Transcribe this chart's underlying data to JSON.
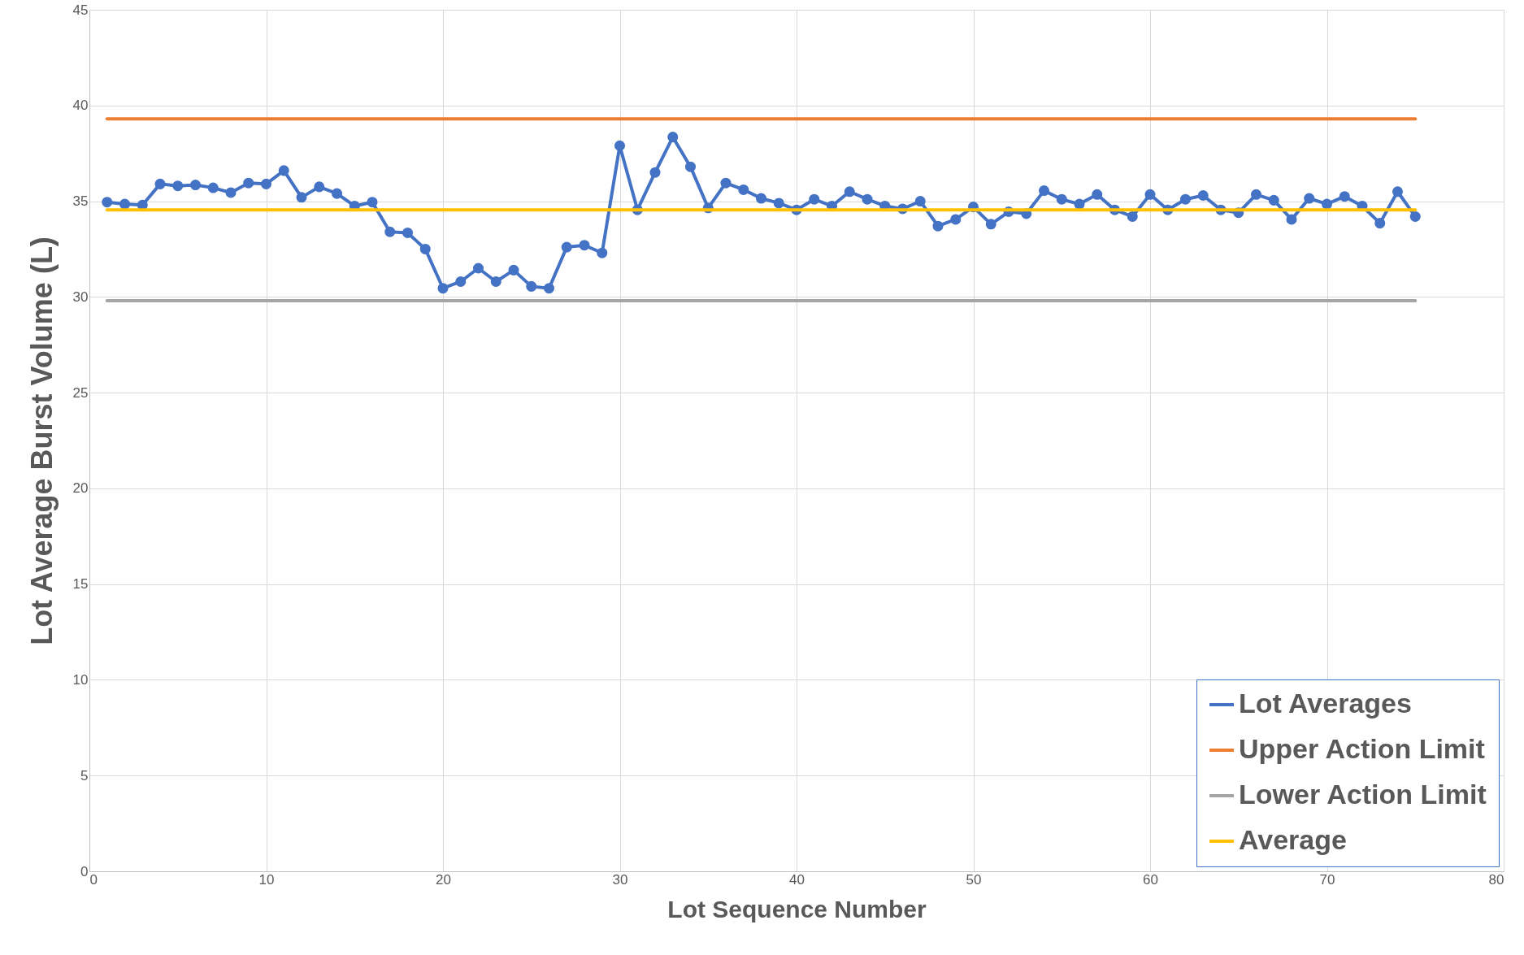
{
  "chart_data": {
    "type": "line",
    "xlabel": "Lot Sequence Number",
    "ylabel": "Lot Average Burst Volume (L)",
    "xlim": [
      0,
      80
    ],
    "xticks": [
      0,
      10,
      20,
      30,
      40,
      50,
      60,
      70,
      80
    ],
    "ylim": [
      0,
      45
    ],
    "yticks": [
      0,
      5,
      10,
      15,
      20,
      25,
      30,
      35,
      40,
      45
    ],
    "grid": true,
    "legend": "bottom right",
    "series": [
      {
        "name": "Lot Averages",
        "color": "#4472c4",
        "marker": "circle",
        "x": [
          1,
          2,
          3,
          4,
          5,
          6,
          7,
          8,
          9,
          10,
          11,
          12,
          13,
          14,
          15,
          16,
          17,
          18,
          19,
          20,
          21,
          22,
          23,
          24,
          25,
          26,
          27,
          28,
          29,
          30,
          31,
          32,
          33,
          34,
          35,
          36,
          37,
          38,
          39,
          40,
          41,
          42,
          43,
          44,
          45,
          46,
          47,
          48,
          49,
          50,
          51,
          52,
          53,
          54,
          55,
          56,
          57,
          58,
          59,
          60,
          61,
          62,
          63,
          64,
          65,
          66,
          67,
          68,
          69,
          70,
          71,
          72,
          73,
          74,
          75
        ],
        "values": [
          34.95,
          34.85,
          34.8,
          35.9,
          35.8,
          35.85,
          35.7,
          35.45,
          35.95,
          35.9,
          36.6,
          35.2,
          35.75,
          35.4,
          34.75,
          34.95,
          33.4,
          33.35,
          32.5,
          30.45,
          30.8,
          31.5,
          30.8,
          31.4,
          30.55,
          30.45,
          32.6,
          32.7,
          32.3,
          37.9,
          34.55,
          36.5,
          38.35,
          36.8,
          34.65,
          35.95,
          35.6,
          35.15,
          34.9,
          34.55,
          35.1,
          34.75,
          35.5,
          35.1,
          34.75,
          34.6,
          35.0,
          33.7,
          34.05,
          34.7,
          33.8,
          34.45,
          34.35,
          35.55,
          35.1,
          34.85,
          35.35,
          34.55,
          34.2,
          35.35,
          34.55,
          35.1,
          35.3,
          34.55,
          34.4,
          35.35,
          35.05,
          34.05,
          35.15,
          34.85,
          35.25,
          34.75,
          33.85,
          35.5,
          34.2
        ]
      },
      {
        "name": "Upper Action Limit",
        "color": "#ed7d31",
        "marker": "none",
        "x": [
          1,
          75
        ],
        "values": [
          39.3,
          39.3
        ]
      },
      {
        "name": "Lower Action Limit",
        "color": "#a5a5a5",
        "marker": "none",
        "x": [
          1,
          75
        ],
        "values": [
          29.8,
          29.8
        ]
      },
      {
        "name": "Average",
        "color": "#ffc000",
        "marker": "none",
        "x": [
          1,
          75
        ],
        "values": [
          34.55,
          34.55
        ]
      }
    ]
  }
}
